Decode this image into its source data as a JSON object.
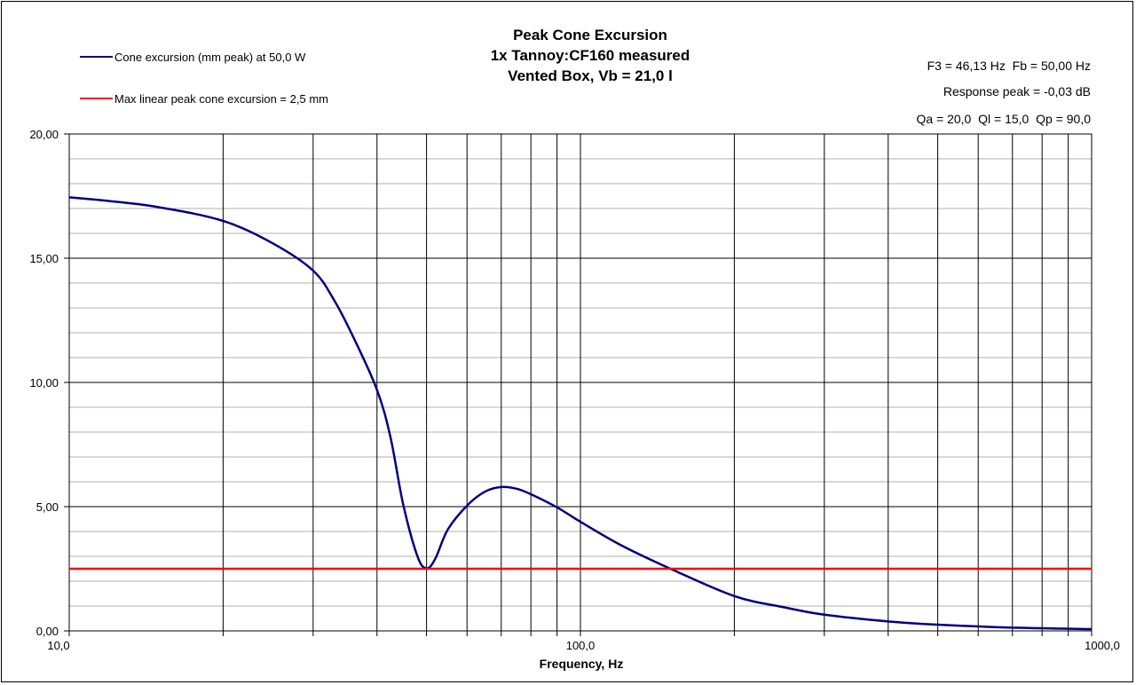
{
  "chart_data": {
    "type": "line",
    "title": [
      "Peak Cone Excursion",
      "1x Tannoy:CF160 measured",
      "Vented Box, Vb = 21,0 l"
    ],
    "xlabel": "Frequency, Hz",
    "ylabel": "",
    "xscale": "log",
    "xlim": [
      10,
      1000
    ],
    "ylim": [
      0,
      20
    ],
    "x_tick_labels": [
      {
        "v": 10,
        "label": "10,0"
      },
      {
        "v": 100,
        "label": "100,0"
      },
      {
        "v": 1000,
        "label": "1000,0"
      }
    ],
    "y_tick_labels": [
      {
        "v": 0,
        "label": "0,00"
      },
      {
        "v": 5,
        "label": "5,00"
      },
      {
        "v": 10,
        "label": "10,00"
      },
      {
        "v": 15,
        "label": "15,00"
      },
      {
        "v": 20,
        "label": "20,00"
      }
    ],
    "grid": true,
    "legend_position": "top-left",
    "series": [
      {
        "name": "Cone excursion (mm peak) at 50,0 W",
        "color": "#000080",
        "x": [
          10,
          12,
          15,
          20,
          25,
          30,
          33,
          36,
          40,
          42.5,
          45,
          48,
          50,
          52,
          55,
          60,
          65,
          70,
          75,
          80,
          90,
          100,
          120,
          150,
          200,
          250,
          300,
          400,
          500,
          700,
          1000
        ],
        "y": [
          17.45,
          17.3,
          17.05,
          16.5,
          15.6,
          14.5,
          13.3,
          11.8,
          9.7,
          7.8,
          5.1,
          3.0,
          2.52,
          2.9,
          4.07,
          5.04,
          5.6,
          5.79,
          5.72,
          5.5,
          4.97,
          4.39,
          3.45,
          2.5,
          1.4,
          0.95,
          0.65,
          0.38,
          0.25,
          0.13,
          0.07
        ]
      },
      {
        "name": "Max linear peak cone excursion = 2,5 mm",
        "color": "#ff0000",
        "x": [
          10,
          1000
        ],
        "y": [
          2.5,
          2.5
        ]
      }
    ],
    "annotations": [
      "F3 = 46,13 Hz  Fb = 50,00 Hz",
      "Response peak = -0,03 dB",
      "Qa = 20,0  Ql = 15,0  Qp = 90,0"
    ]
  }
}
